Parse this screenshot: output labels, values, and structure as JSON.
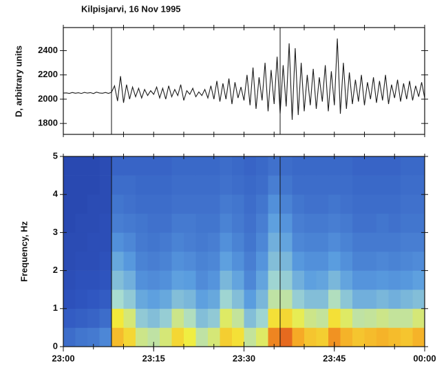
{
  "chart_data": [
    {
      "type": "line",
      "title": "Kilpisjarvi, 16 Nov 1995",
      "ylabel": "D, arbitrary units",
      "color": "#1a1a1a",
      "x": [
        0,
        0.5,
        1,
        1.5,
        2,
        2.5,
        3,
        3.5,
        4,
        4.5,
        5,
        5.5,
        6,
        6.5,
        7,
        7.5,
        8,
        8.5,
        9,
        9.5,
        10,
        10.5,
        11,
        11.5,
        12,
        12.5,
        13,
        13.5,
        14,
        14.5,
        15,
        15.5,
        16,
        16.5,
        17,
        17.5,
        18,
        18.5,
        19,
        19.5,
        20,
        20.5,
        21,
        21.5,
        22,
        22.5,
        23,
        23.5,
        24,
        24.5,
        25,
        25.5,
        26,
        26.5,
        27,
        27.5,
        28,
        28.5,
        29,
        29.5,
        30,
        30.5,
        31,
        31.5,
        32,
        32.5,
        33,
        33.5,
        34,
        34.5,
        35,
        35.5,
        36,
        36.5,
        37,
        37.5,
        38,
        38.5,
        39,
        39.5,
        40,
        40.5,
        41,
        41.5,
        42,
        42.5,
        43,
        43.5,
        44,
        44.5,
        45,
        45.5,
        46,
        46.5,
        47,
        47.5,
        48,
        48.5,
        49,
        49.5,
        50,
        50.5,
        51,
        51.5,
        52,
        52.5,
        53,
        53.5,
        54,
        54.5,
        55,
        55.5,
        56,
        56.5,
        57,
        57.5,
        58,
        58.5,
        59,
        59.5,
        60
      ],
      "values": [
        2050,
        2052,
        2048,
        2055,
        2049,
        2053,
        2047,
        2056,
        2050,
        2054,
        2046,
        2058,
        2051,
        2049,
        2055,
        2048,
        2057,
        2110,
        1985,
        2190,
        1970,
        2120,
        2000,
        2100,
        2020,
        2090,
        2010,
        2080,
        2030,
        2070,
        2040,
        2100,
        2010,
        2090,
        2000,
        2110,
        2020,
        2080,
        2030,
        2120,
        1990,
        2070,
        2040,
        2090,
        2020,
        2060,
        2030,
        2080,
        2010,
        2110,
        2000,
        2150,
        1980,
        2130,
        2000,
        2170,
        1960,
        2140,
        2010,
        2100,
        1990,
        2200,
        1950,
        2260,
        1920,
        2180,
        1990,
        2300,
        1900,
        2240,
        1960,
        2350,
        1880,
        2280,
        1940,
        2460,
        1830,
        2420,
        1870,
        2300,
        1900,
        2200,
        1950,
        2250,
        1920,
        2180,
        1980,
        2280,
        1900,
        2230,
        1950,
        2500,
        1880,
        2300,
        1920,
        2220,
        1960,
        2160,
        1980,
        2200,
        1950,
        2140,
        2000,
        2180,
        1970,
        2150,
        1990,
        2200,
        1960,
        2120,
        2010,
        2160,
        1980,
        2130,
        2000,
        2150,
        1990,
        2110,
        2020,
        2140,
        2010
      ],
      "xlim": [
        0,
        60
      ],
      "ylim": [
        1710,
        2590
      ],
      "yticks": [
        1800,
        2000,
        2200,
        2400
      ],
      "xminorticks": [
        0,
        5,
        10,
        15,
        20,
        25,
        30,
        35,
        40,
        45,
        50,
        55,
        60
      ],
      "vlines": [
        8,
        36
      ]
    },
    {
      "type": "heatmap",
      "ylabel": "Frequency, Hz",
      "x_edges": [
        0,
        2,
        4,
        6,
        8,
        10,
        12,
        14,
        16,
        18,
        20,
        22,
        24,
        26,
        28,
        30,
        32,
        34,
        36,
        38,
        40,
        42,
        44,
        46,
        48,
        50,
        52,
        54,
        56,
        58,
        60
      ],
      "y_edges": [
        0,
        0.5,
        1,
        1.5,
        2,
        2.5,
        3,
        3.5,
        4,
        4.5,
        5
      ],
      "z": [
        [
          0.22,
          0.18,
          0.15,
          0.14,
          0.13,
          0.13,
          0.12,
          0.12,
          0.12,
          0.12
        ],
        [
          0.24,
          0.19,
          0.16,
          0.15,
          0.14,
          0.13,
          0.13,
          0.12,
          0.12,
          0.12
        ],
        [
          0.25,
          0.2,
          0.17,
          0.15,
          0.14,
          0.14,
          0.13,
          0.13,
          0.12,
          0.12
        ],
        [
          0.28,
          0.22,
          0.18,
          0.16,
          0.15,
          0.14,
          0.14,
          0.13,
          0.13,
          0.13
        ],
        [
          0.78,
          0.68,
          0.5,
          0.42,
          0.36,
          0.3,
          0.26,
          0.24,
          0.22,
          0.2
        ],
        [
          0.72,
          0.6,
          0.45,
          0.38,
          0.32,
          0.28,
          0.25,
          0.23,
          0.22,
          0.2
        ],
        [
          0.58,
          0.45,
          0.36,
          0.3,
          0.27,
          0.25,
          0.24,
          0.22,
          0.21,
          0.2
        ],
        [
          0.55,
          0.42,
          0.34,
          0.29,
          0.26,
          0.24,
          0.23,
          0.22,
          0.21,
          0.2
        ],
        [
          0.6,
          0.46,
          0.36,
          0.3,
          0.27,
          0.25,
          0.23,
          0.22,
          0.21,
          0.2
        ],
        [
          0.72,
          0.58,
          0.42,
          0.34,
          0.3,
          0.27,
          0.25,
          0.23,
          0.22,
          0.21
        ],
        [
          0.66,
          0.52,
          0.4,
          0.33,
          0.29,
          0.26,
          0.25,
          0.23,
          0.22,
          0.21
        ],
        [
          0.55,
          0.42,
          0.34,
          0.29,
          0.27,
          0.25,
          0.24,
          0.23,
          0.22,
          0.21
        ],
        [
          0.6,
          0.45,
          0.36,
          0.31,
          0.28,
          0.26,
          0.24,
          0.23,
          0.22,
          0.21
        ],
        [
          0.74,
          0.62,
          0.48,
          0.4,
          0.34,
          0.3,
          0.27,
          0.25,
          0.23,
          0.22
        ],
        [
          0.7,
          0.56,
          0.42,
          0.35,
          0.3,
          0.27,
          0.25,
          0.24,
          0.22,
          0.21
        ],
        [
          0.56,
          0.42,
          0.33,
          0.28,
          0.26,
          0.24,
          0.23,
          0.22,
          0.21,
          0.2
        ],
        [
          0.62,
          0.48,
          0.4,
          0.35,
          0.31,
          0.28,
          0.26,
          0.24,
          0.22,
          0.21
        ],
        [
          0.88,
          0.7,
          0.55,
          0.48,
          0.42,
          0.38,
          0.34,
          0.3,
          0.26,
          0.23
        ],
        [
          0.92,
          0.72,
          0.55,
          0.46,
          0.4,
          0.35,
          0.31,
          0.27,
          0.24,
          0.22
        ],
        [
          0.82,
          0.64,
          0.46,
          0.38,
          0.32,
          0.28,
          0.26,
          0.24,
          0.22,
          0.21
        ],
        [
          0.76,
          0.58,
          0.42,
          0.34,
          0.3,
          0.27,
          0.25,
          0.23,
          0.22,
          0.21
        ],
        [
          0.74,
          0.56,
          0.42,
          0.35,
          0.3,
          0.27,
          0.25,
          0.23,
          0.22,
          0.21
        ],
        [
          0.86,
          0.7,
          0.52,
          0.4,
          0.33,
          0.29,
          0.26,
          0.24,
          0.22,
          0.21
        ],
        [
          0.8,
          0.62,
          0.44,
          0.35,
          0.3,
          0.27,
          0.25,
          0.23,
          0.22,
          0.21
        ],
        [
          0.76,
          0.55,
          0.38,
          0.31,
          0.27,
          0.25,
          0.23,
          0.22,
          0.21,
          0.2
        ],
        [
          0.78,
          0.56,
          0.38,
          0.31,
          0.27,
          0.25,
          0.23,
          0.22,
          0.21,
          0.2
        ],
        [
          0.8,
          0.58,
          0.4,
          0.32,
          0.28,
          0.25,
          0.24,
          0.22,
          0.21,
          0.2
        ],
        [
          0.78,
          0.56,
          0.38,
          0.31,
          0.27,
          0.25,
          0.23,
          0.22,
          0.21,
          0.2
        ],
        [
          0.76,
          0.56,
          0.4,
          0.32,
          0.28,
          0.26,
          0.24,
          0.23,
          0.22,
          0.21
        ],
        [
          0.8,
          0.6,
          0.42,
          0.34,
          0.29,
          0.26,
          0.24,
          0.23,
          0.22,
          0.21
        ]
      ],
      "colormap": [
        "#1b2789",
        "#2f56c0",
        "#5b9ee0",
        "#a8dcd0",
        "#f3ef3c",
        "#f6a424",
        "#d8341a"
      ],
      "xlim": [
        0,
        60
      ],
      "ylim": [
        0,
        5
      ],
      "yticks": [
        0,
        1,
        2,
        3,
        4,
        5
      ],
      "xticks": [
        {
          "value": 0,
          "label": "23:00"
        },
        {
          "value": 15,
          "label": "23:15"
        },
        {
          "value": 30,
          "label": "23:30"
        },
        {
          "value": 45,
          "label": "23:45"
        },
        {
          "value": 60,
          "label": "00:00"
        }
      ],
      "xminorticks": [
        0,
        5,
        10,
        15,
        20,
        25,
        30,
        35,
        40,
        45,
        50,
        55,
        60
      ],
      "vlines": [
        8,
        36
      ]
    }
  ]
}
